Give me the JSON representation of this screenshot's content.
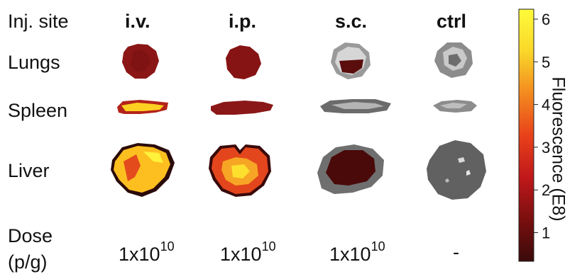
{
  "header": {
    "site_label": "Inj. site",
    "groups": [
      "i.v.",
      "i.p.",
      "s.c.",
      "ctrl"
    ]
  },
  "rows": [
    "Lungs",
    "Spleen",
    "Liver"
  ],
  "dose": {
    "label_line1": "Dose",
    "label_line2": "(p/g)",
    "base": "1x10",
    "exponent": "10",
    "ctrl_value": "-"
  },
  "colorbar": {
    "label": "Fluorescence (E8)",
    "ticks": [
      "1",
      "2",
      "3",
      "4",
      "5",
      "6"
    ],
    "colors": [
      "#3a0a0a",
      "#7a0f0f",
      "#c0181a",
      "#e8421b",
      "#f38a1f",
      "#f9d72a",
      "#fffb3a"
    ]
  },
  "samples": {
    "iv": {
      "lungs": "#8a1716",
      "spleen": "#ffd022",
      "liver": "#fdbf20"
    },
    "ip": {
      "lungs": "#861414",
      "spleen": "#8b1818",
      "liver": "#f07a1d"
    },
    "sc": {
      "lungs": "#5a0d0d",
      "spleen": "#6b6b6b",
      "liver": "#4a0a0a"
    },
    "ctrl": {
      "lungs": "#8c8c8c",
      "spleen": "#8c8c8c",
      "liver": "#616161"
    }
  }
}
